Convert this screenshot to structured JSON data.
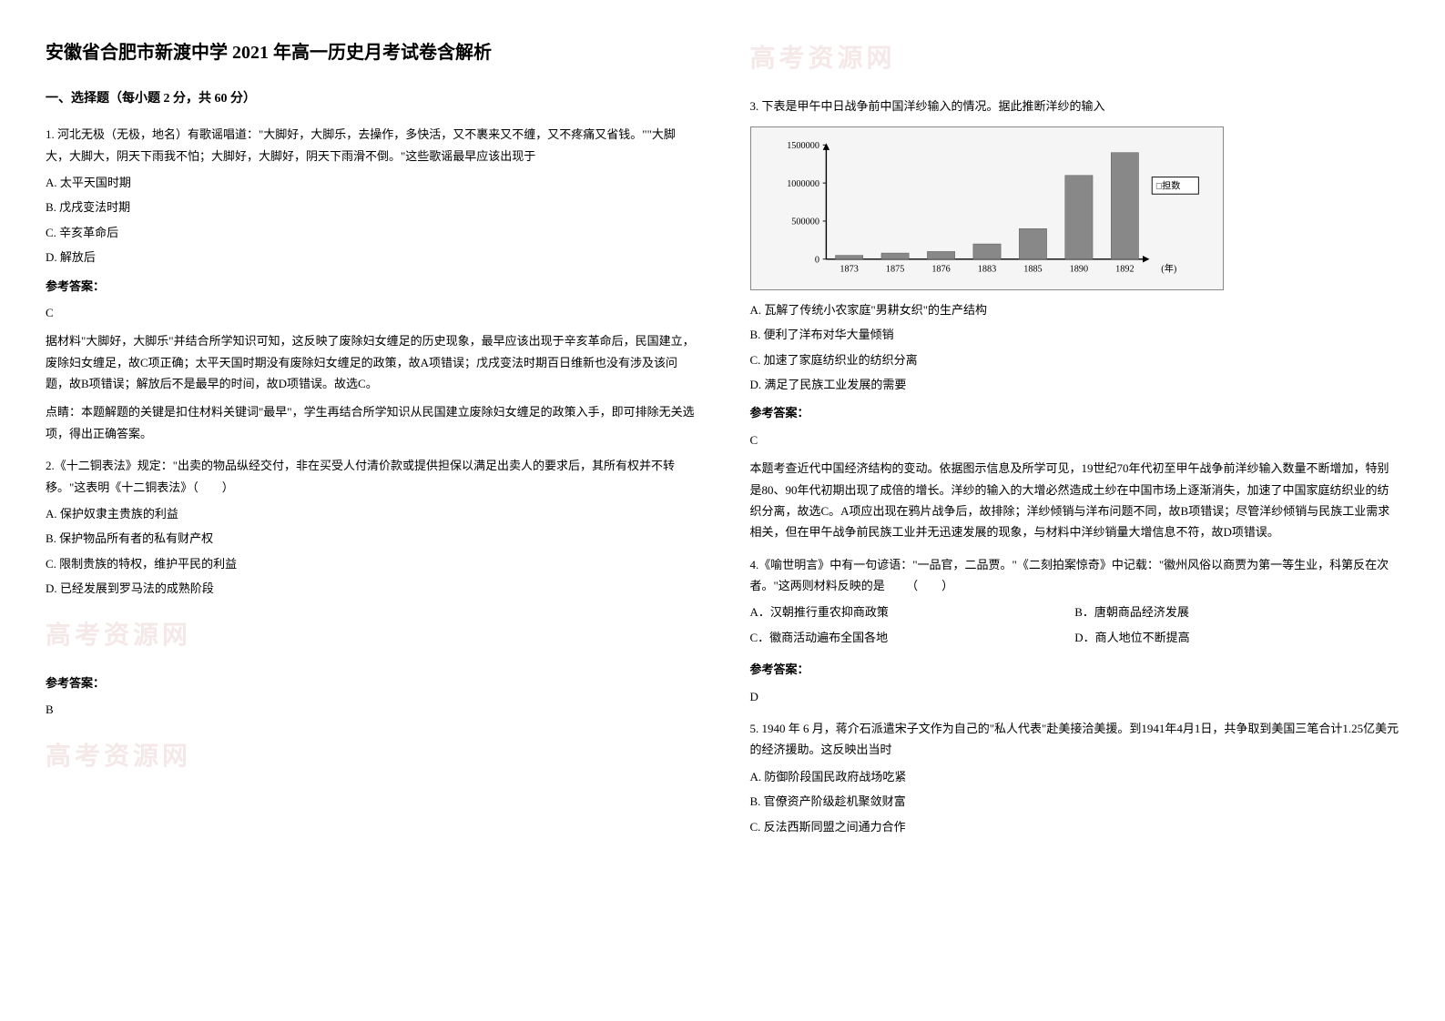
{
  "title": "安徽省合肥市新渡中学 2021 年高一历史月考试卷含解析",
  "section_header": "一、选择题（每小题 2 分，共 60 分）",
  "questions": {
    "q1": {
      "text": "1. 河北无极（无极，地名）有歌谣唱道：\"大脚好，大脚乐，去操作，多快活，又不裹来又不缠，又不疼痛又省钱。\"\"大脚大，大脚大，阴天下雨我不怕；大脚好，大脚好，阴天下雨滑不倒。\"这些歌谣最早应该出现于",
      "options": {
        "A": "A. 太平天国时期",
        "B": "B. 戊戌变法时期",
        "C": "C. 辛亥革命后",
        "D": "D. 解放后"
      },
      "answer_label": "参考答案：",
      "answer": "C",
      "explanation1": "据材料\"大脚好，大脚乐\"并结合所学知识可知，这反映了废除妇女缠足的历史现象，最早应该出现于辛亥革命后，民国建立，废除妇女缠足，故C项正确；太平天国时期没有废除妇女缠足的政策，故A项错误；戊戌变法时期百日维新也没有涉及该问题，故B项错误；解放后不是最早的时间，故D项错误。故选C。",
      "explanation2": "点睛：本题解题的关键是扣住材料关键词\"最早\"，学生再结合所学知识从民国建立废除妇女缠足的政策入手，即可排除无关选项，得出正确答案。"
    },
    "q2": {
      "text": "2.《十二铜表法》规定：\"出卖的物品纵经交付，非在买受人付清价款或提供担保以满足出卖人的要求后，其所有权并不转移。\"这表明《十二铜表法》（　　）",
      "options": {
        "A": "A. 保护奴隶主贵族的利益",
        "B": "B. 保护物品所有者的私有财产权",
        "C": "C. 限制贵族的特权，维护平民的利益",
        "D": "D. 已经发展到罗马法的成熟阶段"
      },
      "answer_label": "参考答案：",
      "answer": "B"
    },
    "q3": {
      "text": "3. 下表是甲午中日战争前中国洋纱输入的情况。据此推断洋纱的输入",
      "options": {
        "A": "A. 瓦解了传统小农家庭\"男耕女织\"的生产结构",
        "B": "B. 便利了洋布对华大量倾销",
        "C": "C. 加速了家庭纺织业的纺织分离",
        "D": "D. 满足了民族工业发展的需要"
      },
      "answer_label": "参考答案：",
      "answer": "C",
      "explanation": "本题考查近代中国经济结构的变动。依据图示信息及所学可见，19世纪70年代初至甲午战争前洋纱输入数量不断增加，特别是80、90年代初期出现了成倍的增长。洋纱的输入的大增必然造成土纱在中国市场上逐渐消失，加速了中国家庭纺织业的纺织分离，故选C。A项应出现在鸦片战争后，故排除；洋纱倾销与洋布问题不同，故B项错误；尽管洋纱倾销与民族工业需求相关，但在甲午战争前民族工业并无迅速发展的现象，与材料中洋纱销量大增信息不符，故D项错误。"
    },
    "q4": {
      "text": "4.《喻世明言》中有一句谚语：\"一品官，二品贾。\"《二刻拍案惊奇》中记载：\"徽州风俗以商贾为第一等生业，科第反在次者。\"这两则材料反映的是",
      "options": {
        "A": "A．汉朝推行重农抑商政策",
        "B": "B．唐朝商品经济发展",
        "C": "C．徽商活动遍布全国各地",
        "D": "D．商人地位不断提高"
      },
      "bracket": "（　　）",
      "answer_label": "参考答案：",
      "answer": "D"
    },
    "q5": {
      "text": "5. 1940 年 6 月，蒋介石派遣宋子文作为自己的\"私人代表\"赴美接洽美援。到1941年4月1日，共争取到美国三笔合计1.25亿美元的经济援助。这反映出当时",
      "options": {
        "A": "A. 防御阶段国民政府战场吃紧",
        "B": "B. 官僚资产阶级趁机聚敛财富",
        "C": "C. 反法西斯同盟之间通力合作"
      }
    }
  },
  "watermark_text": "高考资源网",
  "chart": {
    "type": "bar",
    "categories": [
      "1873",
      "1875",
      "1876",
      "1883",
      "1885",
      "1890",
      "1892"
    ],
    "values": [
      50000,
      80000,
      100000,
      200000,
      400000,
      1100000,
      1400000
    ],
    "x_axis_label": "(年)",
    "legend_label": "□担数",
    "ylim": [
      0,
      1500000
    ],
    "ytick_values": [
      0,
      500000,
      1000000,
      1500000
    ],
    "ytick_labels": [
      "0",
      "500000",
      "1000000",
      "1500000"
    ],
    "bar_color": "#888888",
    "background_color": "#f5f5f5",
    "axis_color": "#000000",
    "text_color": "#000000",
    "bar_width": 0.6,
    "font_size": 11
  }
}
